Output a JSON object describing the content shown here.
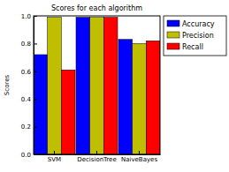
{
  "chart_data": {
    "type": "bar",
    "title": "Scores for each algorithm",
    "y_label": "Scores",
    "categories": [
      "SVM",
      "DecisionTree",
      "NaiveBayes"
    ],
    "series": [
      {
        "name": "Accuracy",
        "color": "#0000ff",
        "values": [
          0.72,
          0.99,
          0.83
        ]
      },
      {
        "name": "Precision",
        "color": "#bfbf00",
        "values": [
          0.99,
          0.99,
          0.8
        ]
      },
      {
        "name": "Recall",
        "color": "#ff0000",
        "values": [
          0.61,
          0.99,
          0.82
        ]
      }
    ],
    "ylim": [
      0,
      1
    ],
    "yticks": [
      {
        "value": 0,
        "label": "0.0"
      },
      {
        "value": 0.2,
        "label": "0.2"
      },
      {
        "value": 0.4,
        "label": "0.4"
      },
      {
        "value": 0.6,
        "label": "0.6"
      },
      {
        "value": 0.8,
        "label": "0.8"
      },
      {
        "value": 1,
        "label": "1.0"
      }
    ],
    "grid": false,
    "legend": "upper right"
  }
}
